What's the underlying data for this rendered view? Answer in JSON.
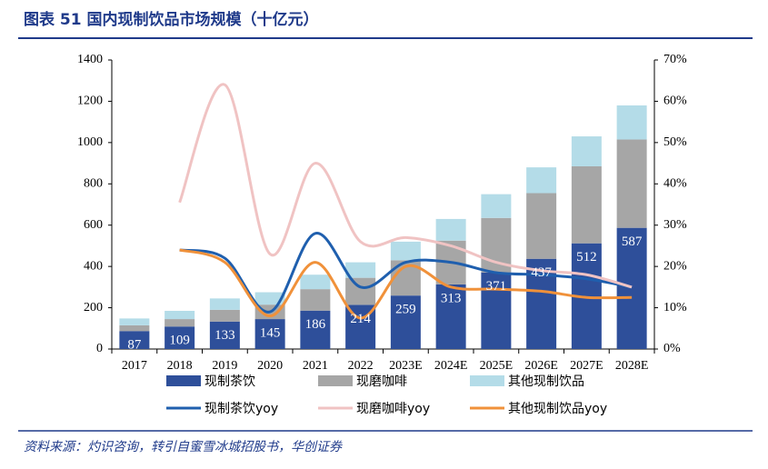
{
  "title": "图表 51 国内现制饮品市场规模（十亿元）",
  "source": "资料来源：灼识咨询，转引自蜜雪冰城招股书，华创证券",
  "chart_data": {
    "type": "bar",
    "categories": [
      "2017",
      "2018",
      "2019",
      "2020",
      "2021",
      "2022",
      "2023E",
      "2024E",
      "2025E",
      "2026E",
      "2027E",
      "2028E"
    ],
    "series": [
      {
        "name": "现制茶饮",
        "color": "#2e4f9a",
        "values": [
          87,
          109,
          133,
          145,
          186,
          214,
          259,
          313,
          371,
          437,
          512,
          587
        ],
        "show_labels": true
      },
      {
        "name": "现磨咖啡",
        "color": "#a6a6a6",
        "values": [
          28,
          36,
          57,
          70,
          104,
          131,
          171,
          212,
          264,
          318,
          373,
          428
        ]
      },
      {
        "name": "其他现制饮品",
        "color": "#b4dce8",
        "values": [
          33,
          40,
          55,
          60,
          70,
          75,
          90,
          105,
          115,
          125,
          145,
          165
        ]
      },
      {
        "name": "现制茶饮yoy",
        "color": "#1f5fae",
        "type": "line",
        "axis": "y2",
        "values": [
          null,
          24,
          22,
          9,
          28,
          15,
          21,
          21,
          18.5,
          18,
          17,
          15
        ]
      },
      {
        "name": "现磨咖啡yoy",
        "color": "#f0c3c3",
        "type": "line",
        "axis": "y2",
        "values": [
          null,
          35.5,
          64,
          23,
          45,
          26,
          27,
          25,
          21,
          19,
          18,
          15
        ]
      },
      {
        "name": "其他现制饮品yoy",
        "color": "#f0913a",
        "type": "line",
        "axis": "y2",
        "values": [
          null,
          24,
          21,
          8,
          21,
          7.5,
          20,
          15,
          14.5,
          14,
          12.5,
          12.5
        ]
      }
    ],
    "ylim": [
      0,
      1400
    ],
    "yticks": [
      0,
      200,
      400,
      600,
      800,
      1000,
      1200,
      1400
    ],
    "y2lim": [
      0,
      70
    ],
    "y2ticks": [
      {
        "value": 0,
        "label": "0%"
      },
      {
        "value": 10,
        "label": "10%"
      },
      {
        "value": 20,
        "label": "20%"
      },
      {
        "value": 30,
        "label": "30%"
      },
      {
        "value": 40,
        "label": "40%"
      },
      {
        "value": 50,
        "label": "50%"
      },
      {
        "value": 60,
        "label": "60%"
      },
      {
        "value": 70,
        "label": "70%"
      }
    ],
    "stacked": true
  }
}
